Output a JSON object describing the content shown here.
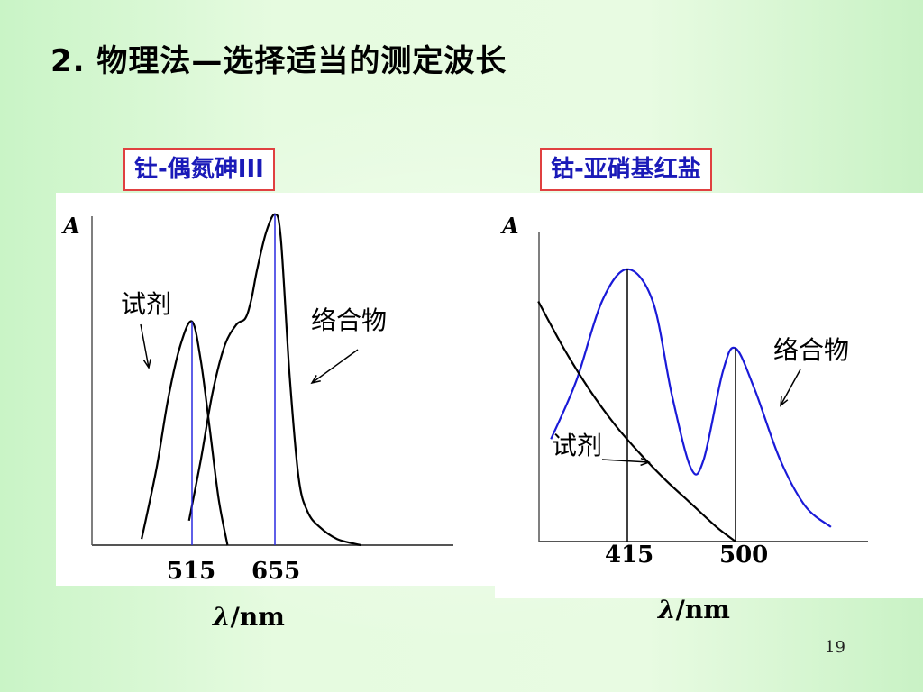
{
  "slide": {
    "title": "2. 物理法—选择适当的测定波长",
    "page_number": "19"
  },
  "chart_data": [
    {
      "type": "line",
      "title": "钍-偶氮砷III",
      "ylabel": "A",
      "xlabel_symbol": "λ",
      "xlabel_unit": "/nm",
      "tick_labels": [
        "515",
        "655"
      ],
      "vertical_markers": [
        515,
        655
      ],
      "series": [
        {
          "name": "试剂",
          "color": "#000000",
          "x": [
            430,
            455,
            475,
            495,
            515,
            530,
            545,
            560,
            575
          ],
          "y": [
            0.02,
            0.25,
            0.48,
            0.65,
            0.73,
            0.6,
            0.38,
            0.15,
            0.0
          ]
        },
        {
          "name": "络合物",
          "color": "#000000",
          "x": [
            510,
            530,
            550,
            570,
            590,
            605,
            615,
            625,
            640,
            655,
            665,
            680,
            695,
            710,
            730,
            760,
            800
          ],
          "y": [
            0.08,
            0.28,
            0.5,
            0.65,
            0.72,
            0.74,
            0.8,
            0.9,
            1.02,
            1.08,
            1.0,
            0.55,
            0.22,
            0.11,
            0.06,
            0.02,
            0.0
          ]
        }
      ]
    },
    {
      "type": "line",
      "title": "钴-亚硝基红盐",
      "ylabel": "A",
      "xlabel_symbol": "λ",
      "xlabel_unit": "/nm",
      "tick_labels": [
        "415",
        "500"
      ],
      "vertical_markers": [
        415,
        500
      ],
      "series": [
        {
          "name": "络合物",
          "color": "#1a1ad8",
          "x": [
            355,
            375,
            395,
            415,
            435,
            450,
            465,
            475,
            490,
            500,
            515,
            535,
            555,
            575
          ],
          "y": [
            0.35,
            0.55,
            0.82,
            0.93,
            0.82,
            0.5,
            0.25,
            0.28,
            0.58,
            0.66,
            0.52,
            0.28,
            0.12,
            0.05
          ]
        },
        {
          "name": "试剂",
          "color": "#000000",
          "x": [
            345,
            365,
            385,
            405,
            425,
            445,
            465,
            485,
            500
          ],
          "y": [
            0.82,
            0.66,
            0.52,
            0.4,
            0.3,
            0.21,
            0.13,
            0.05,
            0.0
          ]
        }
      ]
    }
  ]
}
